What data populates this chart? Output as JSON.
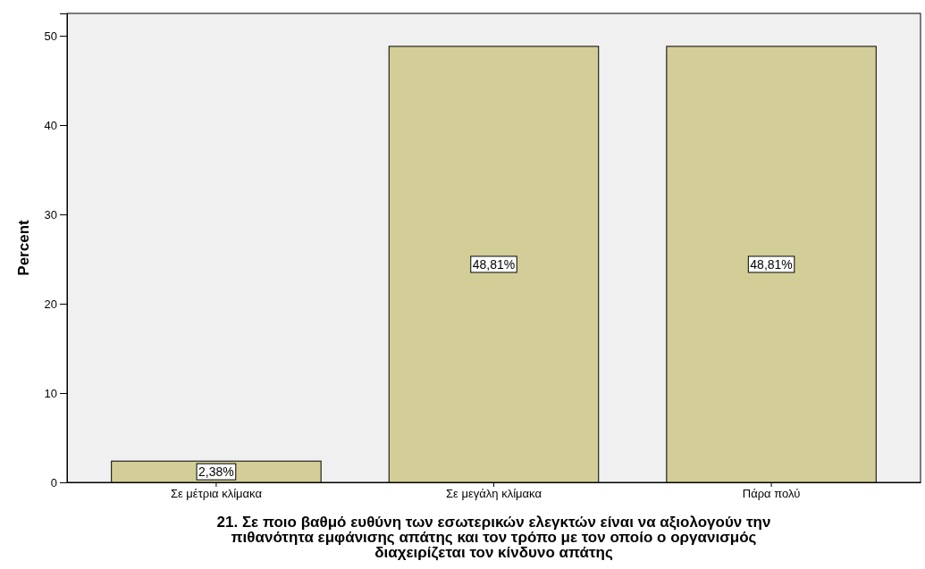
{
  "chart_data": {
    "type": "bar",
    "xlabel": "21. Σε ποιο βαθμό ευθύνη των εσωτερικών ελεγκτών είναι να αξιολογούν την πιθανότητα εμφάνισης απάτης και τον τρόπο με τον οποίο ο οργανισμός διαχειρίζεται τον κίνδυνο απάτης",
    "ylabel": "Percent",
    "categories": [
      "Σε μέτρια κλίμακα",
      "Σε μεγάλη κλίμακα",
      "Πάρα πολύ"
    ],
    "values": [
      2.38,
      48.81,
      48.81
    ],
    "value_labels": [
      "2,38%",
      "48,81%",
      "48,81%"
    ],
    "color": "#d3ce97",
    "ylim": [
      0,
      52.5
    ],
    "yticks": [
      0,
      10,
      20,
      30,
      40,
      50
    ],
    "grid": false
  }
}
